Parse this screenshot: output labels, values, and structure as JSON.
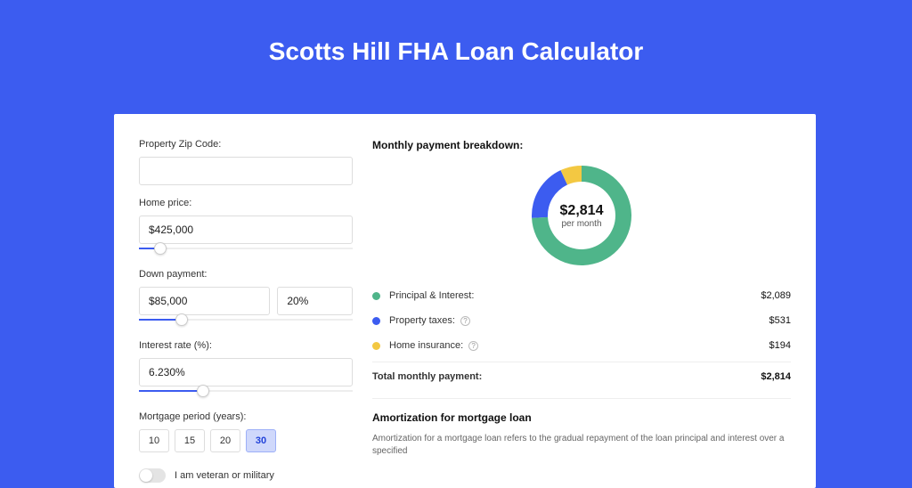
{
  "page": {
    "title": "Scotts Hill FHA Loan Calculator",
    "background_color": "#3c5cf0",
    "card_background": "#ffffff"
  },
  "form": {
    "zip": {
      "label": "Property Zip Code:",
      "value": ""
    },
    "home_price": {
      "label": "Home price:",
      "value": "$425,000",
      "slider_pct": 10
    },
    "down_payment": {
      "label": "Down payment:",
      "amount": "$85,000",
      "percent": "20%",
      "slider_pct": 20
    },
    "interest_rate": {
      "label": "Interest rate (%):",
      "value": "6.230%",
      "slider_pct": 30
    },
    "mortgage_period": {
      "label": "Mortgage period (years):",
      "options": [
        "10",
        "15",
        "20",
        "30"
      ],
      "selected": "30"
    },
    "veteran": {
      "label": "I am veteran or military",
      "on": false
    }
  },
  "breakdown": {
    "title": "Monthly payment breakdown:",
    "donut": {
      "center_value": "$2,814",
      "center_sub": "per month",
      "segments": [
        {
          "label": "Principal & Interest:",
          "value": "$2,089",
          "color": "#4fb58a",
          "pct": 74.2,
          "info": false
        },
        {
          "label": "Property taxes:",
          "value": "$531",
          "color": "#3c5cf0",
          "pct": 18.9,
          "info": true
        },
        {
          "label": "Home insurance:",
          "value": "$194",
          "color": "#f3c842",
          "pct": 6.9,
          "info": true
        }
      ],
      "ring_width": 18,
      "background": "#ffffff"
    },
    "total": {
      "label": "Total monthly payment:",
      "value": "$2,814"
    }
  },
  "amortization": {
    "title": "Amortization for mortgage loan",
    "body": "Amortization for a mortgage loan refers to the gradual repayment of the loan principal and interest over a specified"
  }
}
